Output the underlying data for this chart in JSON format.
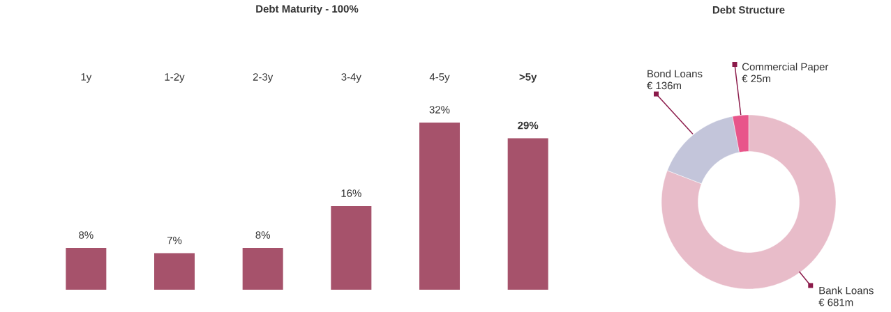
{
  "chart_data": [
    {
      "type": "bar",
      "title": "Debt Maturity - 100%",
      "categories": [
        "1y",
        "1-2y",
        "2-3y",
        "3-4y",
        "4-5y",
        "**>5y**"
      ],
      "values": [
        8,
        7,
        8,
        16,
        32,
        29
      ],
      "value_labels": [
        "8%",
        "7%",
        "8%",
        "16%",
        "32%",
        "**29%**"
      ],
      "color": "#a6526b"
    },
    {
      "type": "donut",
      "title": "Debt Structure",
      "categories": [
        "Bank Loans",
        "Bond Loans",
        "Commercial Paper"
      ],
      "values": [
        681,
        136,
        25
      ],
      "value_labels": [
        "€ 681m",
        "€ 136m",
        "€ 25m"
      ],
      "colors": [
        "#e8bcc9",
        "#c3c5da",
        "#e8558a"
      ]
    }
  ]
}
